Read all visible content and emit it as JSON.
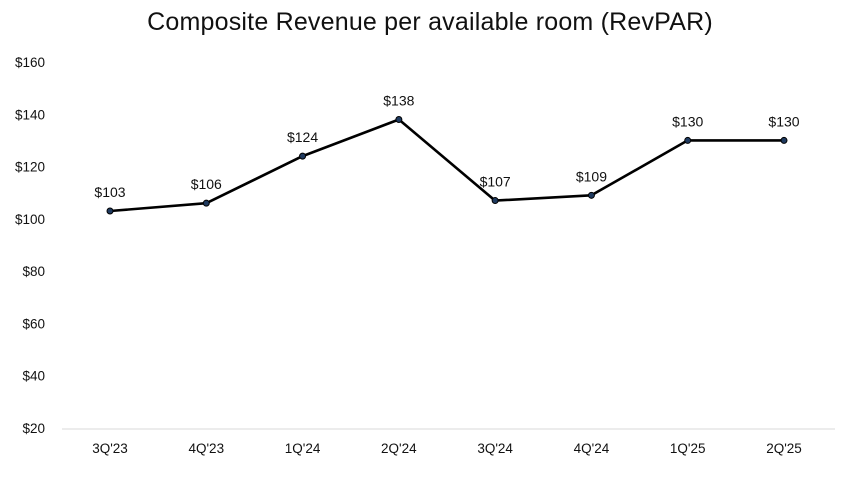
{
  "chart_data": {
    "type": "line",
    "title": "Composite Revenue per available room (RevPAR)",
    "xlabel": "",
    "ylabel": "",
    "categories": [
      "3Q'23",
      "4Q'23",
      "1Q'24",
      "2Q'24",
      "3Q'24",
      "4Q'24",
      "1Q'25",
      "2Q'25"
    ],
    "series": [
      {
        "name": "RevPAR",
        "values": [
          103,
          106,
          124,
          138,
          107,
          109,
          130,
          130
        ],
        "labels": [
          "$103",
          "$106",
          "$124",
          "$138",
          "$107",
          "$109",
          "$130",
          "$130"
        ]
      }
    ],
    "ylim": [
      20,
      160
    ],
    "yticks": [
      20,
      40,
      60,
      80,
      100,
      120,
      140,
      160
    ],
    "ytick_labels": [
      "$20",
      "$40",
      "$60",
      "$80",
      "$100",
      "$120",
      "$140",
      "$160"
    ],
    "grid": false,
    "legend": "none",
    "line_color": "#000000",
    "marker_color": "#1f3a5f"
  }
}
